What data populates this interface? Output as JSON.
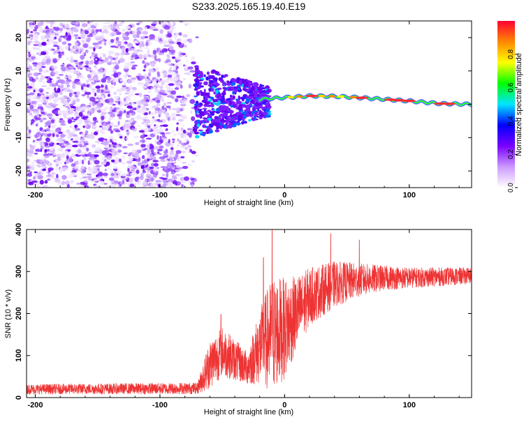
{
  "title": "S233.2025.165.19.40.E19",
  "chart_data": [
    {
      "type": "heatmap",
      "xlabel": "Height of straight line (km)",
      "ylabel": "Frequency (Hz)",
      "xlim": [
        -207,
        150
      ],
      "ylim": [
        -25,
        25
      ],
      "xticks": [
        -200,
        -100,
        0,
        100
      ],
      "yticks": [
        -20,
        -10,
        0,
        10,
        20
      ],
      "xtick_labels": [
        "-200",
        "-100",
        "0",
        "100"
      ],
      "ytick_labels": [
        "-20",
        "-10",
        "0",
        "10",
        "20"
      ],
      "colorbar": {
        "label": "Normalized spectral amplitude",
        "range": [
          0,
          1
        ],
        "ticks": [
          0.0,
          0.2,
          0.4,
          0.6,
          0.8
        ],
        "tick_labels": [
          "0.0",
          "0.2",
          "0.4",
          "0.6",
          "0.8"
        ],
        "colors": [
          "#ffffff",
          "#cc99ff",
          "#7a00ff",
          "#0000ff",
          "#00e5ff",
          "#00ff00",
          "#ffff00",
          "#ff8800",
          "#ff0033"
        ]
      },
      "ridge": [
        {
          "x": -60,
          "y": 0.5
        },
        {
          "x": -20,
          "y": 1.5
        },
        {
          "x": 0,
          "y": 2.0
        },
        {
          "x": 20,
          "y": 2.5
        },
        {
          "x": 40,
          "y": 2.4
        },
        {
          "x": 60,
          "y": 2.0
        },
        {
          "x": 80,
          "y": 1.5
        },
        {
          "x": 100,
          "y": 1.0
        },
        {
          "x": 125,
          "y": 0.2
        },
        {
          "x": 150,
          "y": 0.0
        }
      ],
      "noise_region_x": [
        -207,
        -70
      ]
    },
    {
      "type": "line",
      "xlabel": "Height of straight line (km)",
      "ylabel": "SNR (10 * v/v)",
      "xlim": [
        -207,
        150
      ],
      "ylim": [
        0,
        400
      ],
      "xticks": [
        -200,
        -100,
        0,
        100
      ],
      "yticks": [
        0,
        100,
        200,
        300,
        400
      ],
      "xtick_labels": [
        "-200",
        "-100",
        "0",
        "100"
      ],
      "ytick_labels": [
        "0",
        "100",
        "200",
        "300",
        "400"
      ],
      "color": "#ee3333",
      "envelope": {
        "x": [
          -207,
          -70,
          -60,
          -50,
          -40,
          -30,
          -20,
          -10,
          0,
          10,
          20,
          40,
          60,
          80,
          100,
          150
        ],
        "mean": [
          20,
          22,
          80,
          110,
          90,
          70,
          120,
          150,
          165,
          200,
          240,
          270,
          280,
          285,
          285,
          290
        ],
        "spread": [
          12,
          14,
          60,
          60,
          50,
          40,
          90,
          140,
          120,
          90,
          70,
          55,
          40,
          30,
          25,
          20
        ]
      },
      "peaks": [
        {
          "x": -51,
          "y": 198
        },
        {
          "x": -17,
          "y": 333
        },
        {
          "x": -10,
          "y": 410
        },
        {
          "x": 37,
          "y": 390
        },
        {
          "x": 60,
          "y": 375
        }
      ]
    }
  ]
}
